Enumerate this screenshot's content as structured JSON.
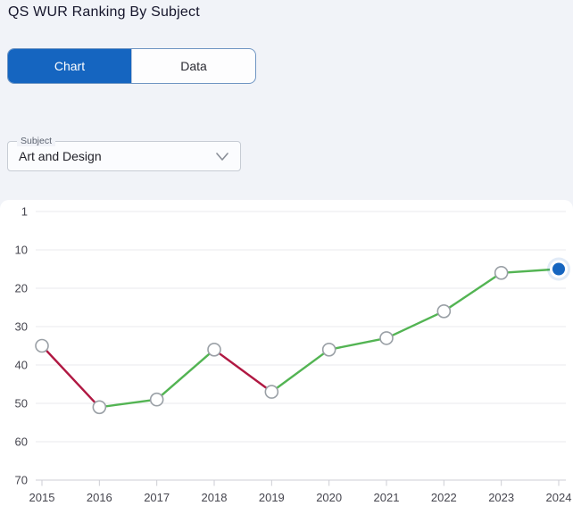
{
  "header": {
    "title": "QS WUR Ranking By Subject"
  },
  "tabs": {
    "items": [
      {
        "label": "Chart",
        "active": true
      },
      {
        "label": "Data",
        "active": false
      }
    ]
  },
  "subject_select": {
    "label": "Subject",
    "value": "Art and Design",
    "icon": "chevron-down-icon"
  },
  "chart_data": {
    "type": "line",
    "title": "QS WUR Ranking By Subject — Art and Design",
    "categories": [
      "2015",
      "2016",
      "2017",
      "2018",
      "2019",
      "2020",
      "2021",
      "2022",
      "2023",
      "2024"
    ],
    "series": [
      {
        "name": "Art and Design",
        "values": [
          35,
          51,
          49,
          36,
          47,
          36,
          33,
          26,
          16,
          15
        ]
      }
    ],
    "y_ticks": [
      1,
      10,
      20,
      30,
      40,
      50,
      60,
      70
    ],
    "y_axis_inverted": true,
    "y_range": [
      1,
      70
    ],
    "grid": "horizontal",
    "legend": "none",
    "colors": {
      "improving_segment": "#53b453",
      "declining_segment": "#b01842",
      "marker_fill": "#ffffff",
      "marker_stroke": "#9aa0a6",
      "latest_point": "#1565c0",
      "latest_halo": "#1565c0",
      "gridline": "#e9eaee",
      "axis": "#cdced4",
      "tick_label": "#46464f"
    }
  },
  "colors": {
    "accent": "#1565c0",
    "page_background": "#f1f3f8",
    "panel_background": "#ffffff"
  }
}
